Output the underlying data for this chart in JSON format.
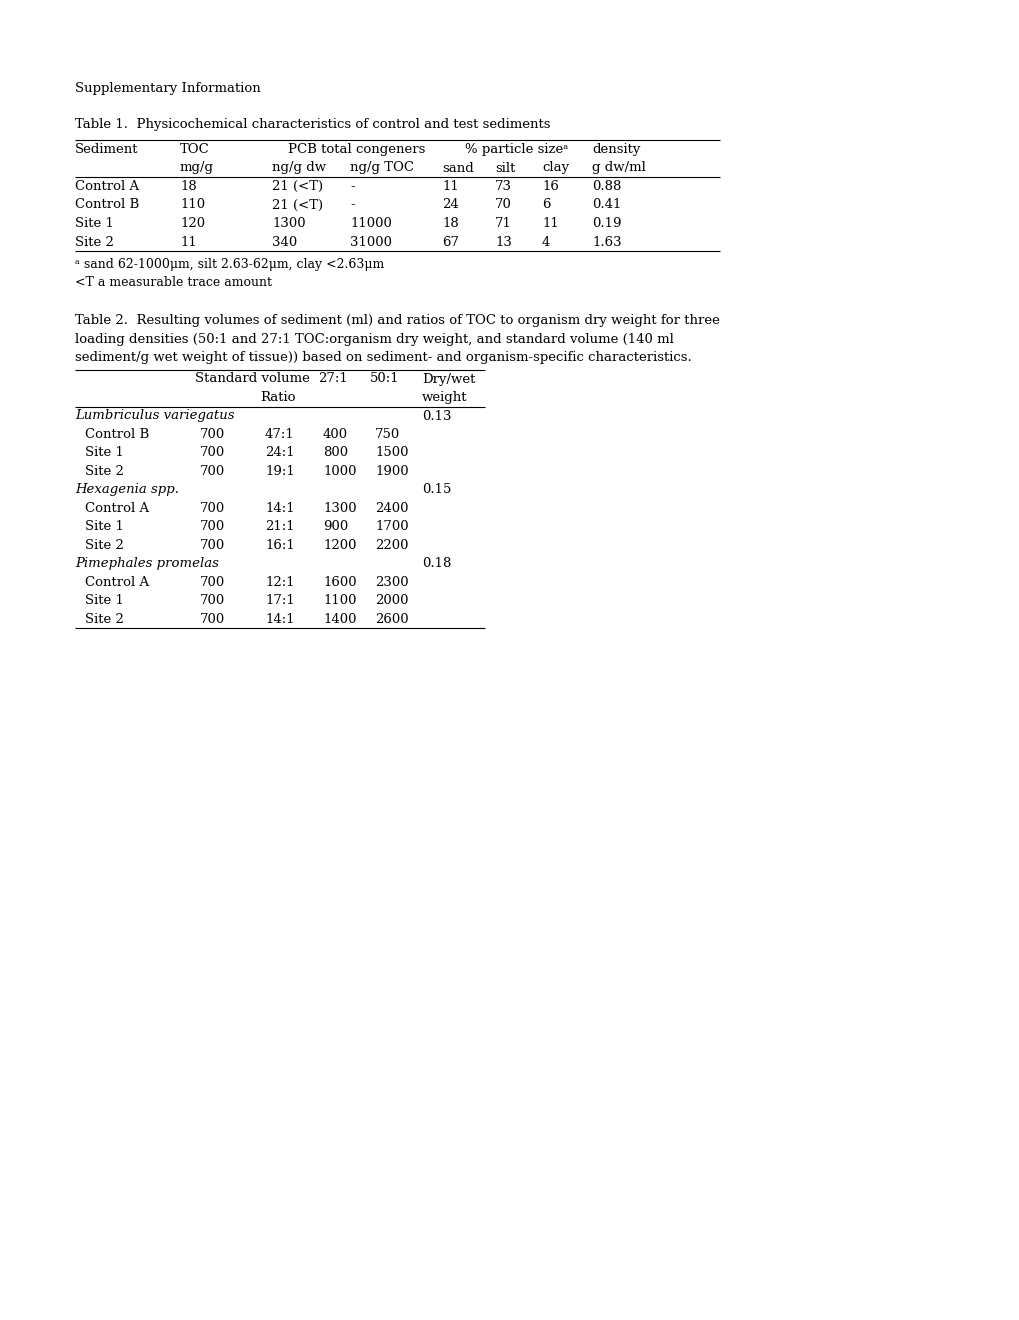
{
  "page_bg": "#ffffff",
  "text_color": "#000000",
  "font_family": "DejaVu Serif",
  "supplementary_label": "Supplementary Information",
  "table1": {
    "title": "Table 1.  Physicochemical characteristics of control and test sediments",
    "footnote1": "a sand 62-1000μm, silt 2.63-62μm, clay <2.63μm",
    "footnote2": "<T a measurable trace amount",
    "rows": [
      [
        "Control A",
        "18",
        "21 (<T)",
        "-",
        "11",
        "73",
        "16",
        "0.88"
      ],
      [
        "Control B",
        "110",
        "21 (<T)",
        "-",
        "24",
        "70",
        "6",
        "0.41"
      ],
      [
        "Site 1",
        "120",
        "1300",
        "11000",
        "18",
        "71",
        "11",
        "0.19"
      ],
      [
        "Site 2",
        "11",
        "340",
        "31000",
        "67",
        "13",
        "4",
        "1.63"
      ]
    ]
  },
  "table2": {
    "title_line1": "Table 2.  Resulting volumes of sediment (ml) and ratios of TOC to organism dry weight for three",
    "title_line2": "loading densities (50:1 and 27:1 TOC:organism dry weight, and standard volume (140 ml",
    "title_line3": "sediment/g wet weight of tissue)) based on sediment- and organism-specific characteristics.",
    "sections": [
      {
        "name": "Lumbriculus variegatus",
        "dry_wet": "0.13",
        "rows": [
          [
            "Control B",
            "700",
            "47:1",
            "400",
            "750"
          ],
          [
            "Site 1",
            "700",
            "24:1",
            "800",
            "1500"
          ],
          [
            "Site 2",
            "700",
            "19:1",
            "1000",
            "1900"
          ]
        ]
      },
      {
        "name": "Hexagenia spp.",
        "dry_wet": "0.15",
        "rows": [
          [
            "Control A",
            "700",
            "14:1",
            "1300",
            "2400"
          ],
          [
            "Site 1",
            "700",
            "21:1",
            "900",
            "1700"
          ],
          [
            "Site 2",
            "700",
            "16:1",
            "1200",
            "2200"
          ]
        ]
      },
      {
        "name": "Pimephales promelas",
        "dry_wet": "0.18",
        "rows": [
          [
            "Control A",
            "700",
            "12:1",
            "1600",
            "2300"
          ],
          [
            "Site 1",
            "700",
            "17:1",
            "1100",
            "2000"
          ],
          [
            "Site 2",
            "700",
            "14:1",
            "1400",
            "2600"
          ]
        ]
      }
    ]
  }
}
